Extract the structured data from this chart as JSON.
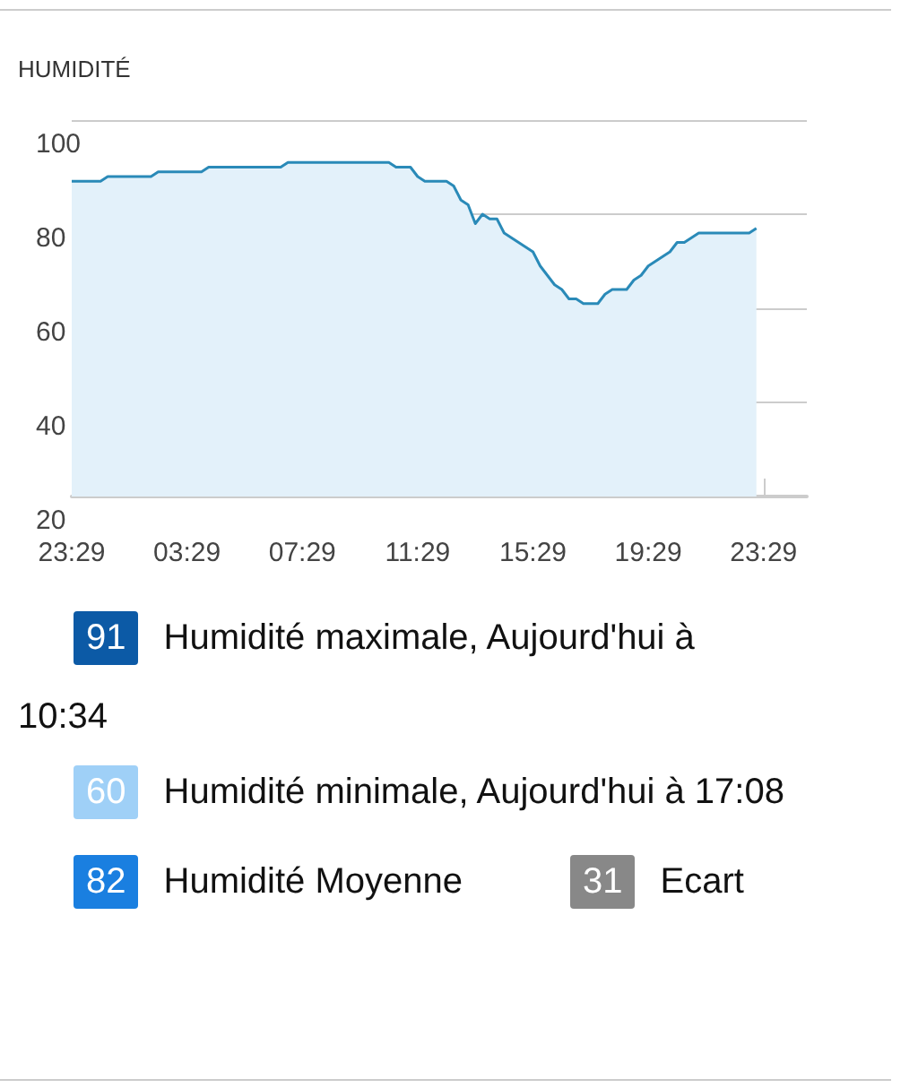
{
  "chart_data": {
    "type": "area",
    "title": "HUMIDITÉ",
    "categories": [
      "23:29",
      null,
      null,
      null,
      null,
      null,
      null,
      null,
      null,
      null,
      null,
      null,
      null,
      null,
      null,
      null,
      "03:29",
      null,
      null,
      null,
      null,
      null,
      null,
      null,
      null,
      null,
      null,
      null,
      null,
      null,
      null,
      null,
      "07:29",
      null,
      null,
      null,
      null,
      null,
      null,
      null,
      null,
      null,
      null,
      null,
      null,
      null,
      null,
      null,
      "11:29",
      null,
      null,
      null,
      null,
      null,
      null,
      null,
      null,
      null,
      null,
      null,
      null,
      null,
      null,
      null,
      "15:29",
      null,
      null,
      null,
      null,
      null,
      null,
      null,
      null,
      null,
      null,
      null,
      null,
      null,
      null,
      null,
      "19:29",
      null,
      null,
      null,
      null,
      null,
      null,
      null,
      null,
      null,
      null,
      null,
      null,
      null,
      null,
      null,
      "23:29",
      null,
      null,
      null,
      null,
      null,
      null
    ],
    "series": [
      {
        "color": "#2a8ab8",
        "values": [
          87,
          87,
          87,
          87,
          87,
          88,
          88,
          88,
          88,
          88,
          88,
          88,
          89,
          89,
          89,
          89,
          89,
          89,
          89,
          90,
          90,
          90,
          90,
          90,
          90,
          90,
          90,
          90,
          90,
          90,
          91,
          91,
          91,
          91,
          91,
          91,
          91,
          91,
          91,
          91,
          91,
          91,
          91,
          91,
          91,
          90,
          90,
          90,
          88,
          87,
          87,
          87,
          87,
          86,
          83,
          82,
          78,
          80,
          79,
          79,
          76,
          75,
          74,
          73,
          72,
          69,
          67,
          65,
          64,
          62,
          62,
          61,
          61,
          61,
          63,
          64,
          64,
          64,
          66,
          67,
          69,
          70,
          71,
          72,
          74,
          74,
          75,
          76,
          76,
          76,
          76,
          76,
          76,
          76,
          76,
          77,
          null,
          null,
          null,
          null,
          null,
          null,
          null
        ]
      }
    ],
    "ylim": [
      20,
      100
    ],
    "yticks": [
      20,
      40,
      60,
      80,
      100
    ],
    "grid": "y",
    "marker": "none",
    "line_style": "solid",
    "annotations": [
      "91",
      "Humidité maximale, Aujourd'hui à 10:34",
      "60",
      "Humidité minimale, Aujourd'hui à 17:08",
      "82",
      "Humidité Moyenne",
      "31",
      "Ecart"
    ]
  }
}
